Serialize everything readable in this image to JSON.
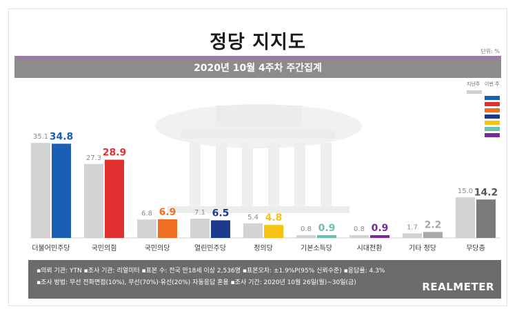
{
  "header": {
    "title": "정당 지지도",
    "unit": "단위: %",
    "subtitle": "2020년 10월 4주차 주간집계"
  },
  "legend": {
    "prev_label": "지난주",
    "now_label": "이번 주"
  },
  "chart_data": {
    "type": "bar",
    "categories": [
      "더불어민주당",
      "국민의힘",
      "국민의당",
      "열린민주당",
      "정의당",
      "기본소득당",
      "시대전환",
      "기타 정당",
      "무당층"
    ],
    "series": [
      {
        "name": "지난주",
        "values": [
          35.1,
          27.3,
          6.8,
          7.1,
          5.4,
          0.8,
          0.8,
          1.7,
          15.0
        ]
      },
      {
        "name": "이번 주",
        "values": [
          34.8,
          28.9,
          6.9,
          6.5,
          4.8,
          0.9,
          0.9,
          2.2,
          14.2
        ]
      }
    ],
    "value_labels": {
      "prev": [
        "35.1",
        "27.3",
        "6.8",
        "7.1",
        "5.4",
        "0.8",
        "0.8",
        "1.7",
        "15.0"
      ],
      "now": [
        "34.8",
        "28.9",
        "6.9",
        "6.5",
        "4.8",
        "0.9",
        "0.9",
        "2.2",
        "14.2"
      ]
    },
    "colors": {
      "prev": "#d3d3d3",
      "now": [
        "#1a5fb4",
        "#e03030",
        "#ee6e22",
        "#1c3a8c",
        "#f5c314",
        "#6cc0b3",
        "#7a2a9a",
        "#a8a8a8",
        "#7a7a7a"
      ],
      "now_labels": [
        "#1a5fb4",
        "#e03030",
        "#ee6e22",
        "#1c3a8c",
        "#f5c314",
        "#6cc0b3",
        "#7a2a9a",
        "#a8a8a8",
        "#555555"
      ]
    },
    "ylim": [
      0,
      40
    ],
    "grid": false
  },
  "footer": {
    "line1": "▪의뢰 기관: YTN ▪조사 기관: 리얼미터 ▪표본 수: 전국 만18세 이상 2,536명 ▪표본오차: ±1.9%P(95% 신뢰수준) ▪응답률: 4.3%",
    "line2": "▪조사 방법: 무선 전화면접(10%), 무선(70%)·유선(20%) 자동응답 혼용 ▪조사 기간: 2020년 10월 26일(월)~30일(금)",
    "brand": "REALMETER"
  }
}
